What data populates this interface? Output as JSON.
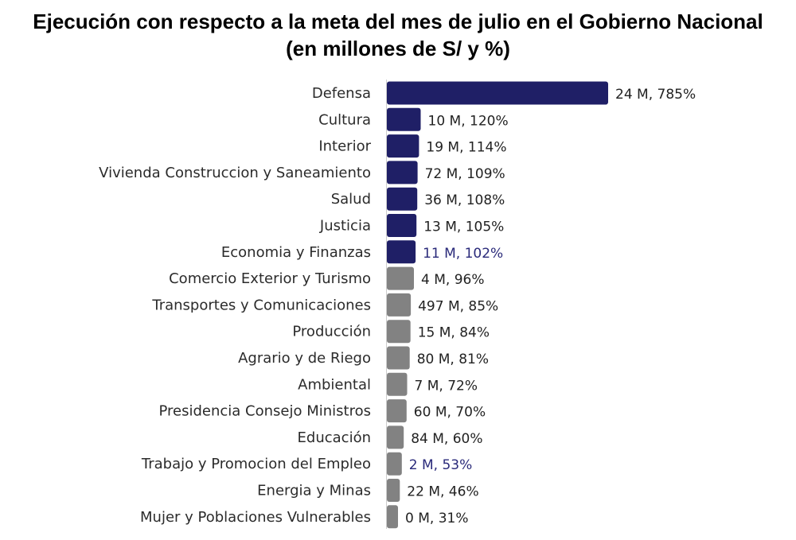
{
  "title": "Ejecución con respecto a la meta del mes de julio en el Gobierno Nacional",
  "subtitle": "(en millones de S/ y %)",
  "colors": {
    "above_goal": "#1f1f66",
    "below_goal": "#828282",
    "highlight_label": "#2a2a7a",
    "label": "#222222"
  },
  "chart_data": {
    "type": "bar",
    "orientation": "horizontal",
    "title": "Ejecución con respecto a la meta del mes de julio en el Gobierno Nacional",
    "subtitle": "(en millones de S/ y %)",
    "categories": [
      "Defensa",
      "Cultura",
      "Interior",
      "Vivienda Construccion y Saneamiento",
      "Salud",
      "Justicia",
      "Economia y Finanzas",
      "Comercio Exterior y Turismo",
      "Transportes y Comunicaciones",
      "Producción",
      "Agrario y de Riego",
      "Ambiental",
      "Presidencia Consejo Ministros",
      "Educación",
      "Trabajo y Promocion del Empleo",
      "Energia y Minas",
      "Mujer y Poblaciones Vulnerables"
    ],
    "values": [
      785,
      120,
      114,
      109,
      108,
      105,
      102,
      96,
      85,
      84,
      81,
      72,
      70,
      60,
      53,
      46,
      31
    ],
    "data_labels": [
      "24 M, 785%",
      "10 M, 120%",
      "19 M, 114%",
      "72 M, 109%",
      "36 M, 108%",
      "13 M, 105%",
      "11 M, 102%",
      "4 M, 96%",
      "497 M, 85%",
      "15 M, 84%",
      "80 M, 81%",
      "7 M, 72%",
      "60 M, 70%",
      "84 M, 60%",
      "2 M, 53%",
      "22 M, 46%",
      "0 M, 31%"
    ],
    "highlighted_labels": [
      6,
      14
    ],
    "xlim": [
      0,
      785
    ],
    "legend": "none",
    "grid": false
  }
}
